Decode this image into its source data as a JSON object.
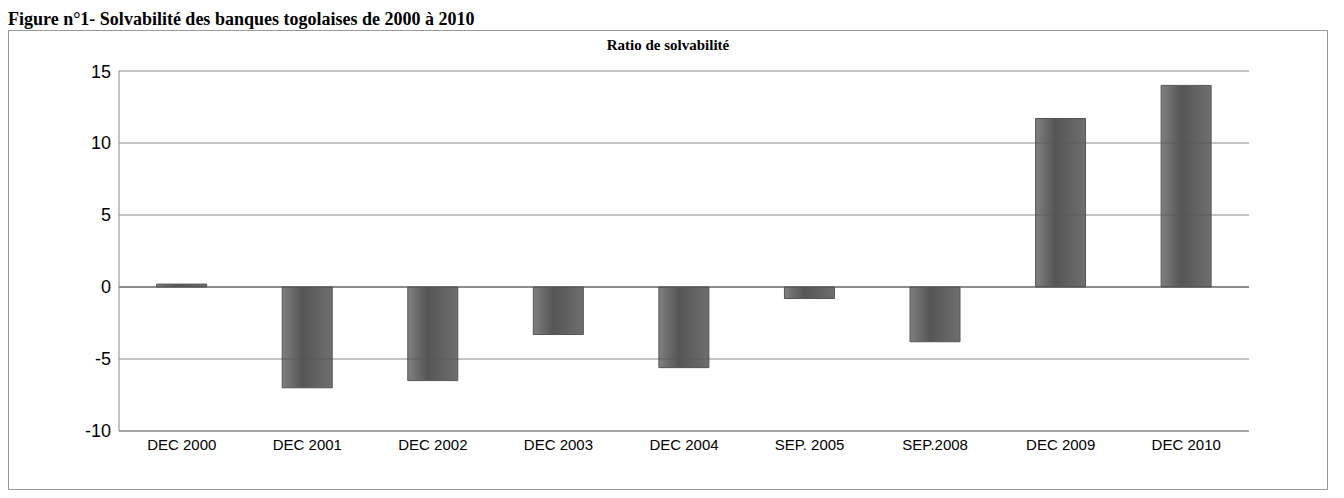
{
  "chart_data": {
    "type": "bar",
    "title": "Figure n°1- Solvabilité des banques togolaises de 2000 à 2010",
    "subtitle": "Ratio de solvabilité",
    "categories": [
      "DEC 2000",
      "DEC 2001",
      "DEC 2002",
      "DEC 2003",
      "DEC 2004",
      "SEP. 2005",
      "SEP.2008",
      "DEC 2009",
      "DEC 2010"
    ],
    "values": [
      0.2,
      -7,
      -6.5,
      -3.3,
      -5.6,
      -0.8,
      -3.8,
      11.7,
      14
    ],
    "color": "#555555",
    "ylim": [
      -10,
      15
    ],
    "yticks": [
      -10,
      -5,
      0,
      5,
      10,
      15
    ],
    "grid": true
  }
}
